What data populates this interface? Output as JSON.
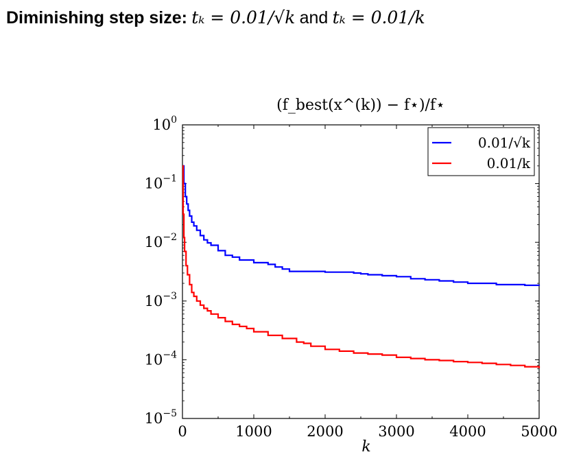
{
  "slide": {
    "title_lead": "Diminishing step size:",
    "title_expr1": "tₖ = 0.01/√k",
    "title_and": "and",
    "title_expr2": "tₖ = 0.01/k"
  },
  "chart_data": {
    "type": "line",
    "title": "(f_best(x^(k)) − f⋆)/f⋆",
    "xlabel": "k",
    "ylabel": "",
    "xlim": [
      0,
      5000
    ],
    "ylim": [
      1e-05,
      1
    ],
    "yscale": "log",
    "xticks": [
      0,
      1000,
      2000,
      3000,
      4000,
      5000
    ],
    "xtick_labels": [
      "0",
      "1000",
      "2000",
      "3000",
      "4000",
      "5000"
    ],
    "ytick_exponents": [
      0,
      -1,
      -2,
      -3,
      -4,
      -5
    ],
    "ytick_labels": [
      "10",
      "10",
      "10",
      "10",
      "10",
      "10"
    ],
    "ytick_exponent_labels": [
      "0",
      "−1",
      "−2",
      "−3",
      "−4",
      "−5"
    ],
    "grid": false,
    "legend_position": "top-right",
    "series": [
      {
        "name": "0.01/√k",
        "color": "#0000ff",
        "x": [
          1,
          20,
          40,
          60,
          80,
          100,
          130,
          160,
          200,
          250,
          300,
          350,
          400,
          500,
          600,
          700,
          800,
          1000,
          1200,
          1300,
          1400,
          1500,
          1800,
          2000,
          2200,
          2400,
          2500,
          2600,
          2800,
          3000,
          3200,
          3400,
          3600,
          3800,
          4000,
          4400,
          4800,
          5000
        ],
        "y": [
          0.2,
          0.1,
          0.06,
          0.045,
          0.035,
          0.028,
          0.022,
          0.019,
          0.016,
          0.013,
          0.011,
          0.0098,
          0.0089,
          0.0072,
          0.006,
          0.0056,
          0.005,
          0.0045,
          0.0042,
          0.0038,
          0.0035,
          0.0032,
          0.0032,
          0.0031,
          0.0031,
          0.003,
          0.0029,
          0.0028,
          0.0027,
          0.0026,
          0.0024,
          0.0023,
          0.0022,
          0.0021,
          0.002,
          0.0019,
          0.00185,
          0.00182
        ]
      },
      {
        "name": "0.01/k",
        "color": "#ff0000",
        "x": [
          1,
          10,
          20,
          30,
          50,
          70,
          100,
          130,
          160,
          200,
          250,
          300,
          350,
          400,
          500,
          600,
          700,
          800,
          900,
          1000,
          1200,
          1400,
          1600,
          1700,
          1800,
          2000,
          2200,
          2400,
          2600,
          2800,
          3000,
          3200,
          3400,
          3600,
          3800,
          4000,
          4200,
          4400,
          4600,
          4800,
          5000
        ],
        "y": [
          0.2,
          0.03,
          0.012,
          0.007,
          0.004,
          0.0028,
          0.0019,
          0.0014,
          0.0012,
          0.001,
          0.00085,
          0.00075,
          0.00068,
          0.0006,
          0.00052,
          0.00045,
          0.0004,
          0.00037,
          0.00034,
          0.0003,
          0.00026,
          0.00023,
          0.0002,
          0.00019,
          0.00017,
          0.00015,
          0.00014,
          0.00013,
          0.000125,
          0.00012,
          0.00011,
          0.000105,
          0.0001,
          9.7e-05,
          9.3e-05,
          9e-05,
          8.7e-05,
          8.3e-05,
          8e-05,
          7.6e-05,
          7.2e-05
        ]
      }
    ]
  }
}
